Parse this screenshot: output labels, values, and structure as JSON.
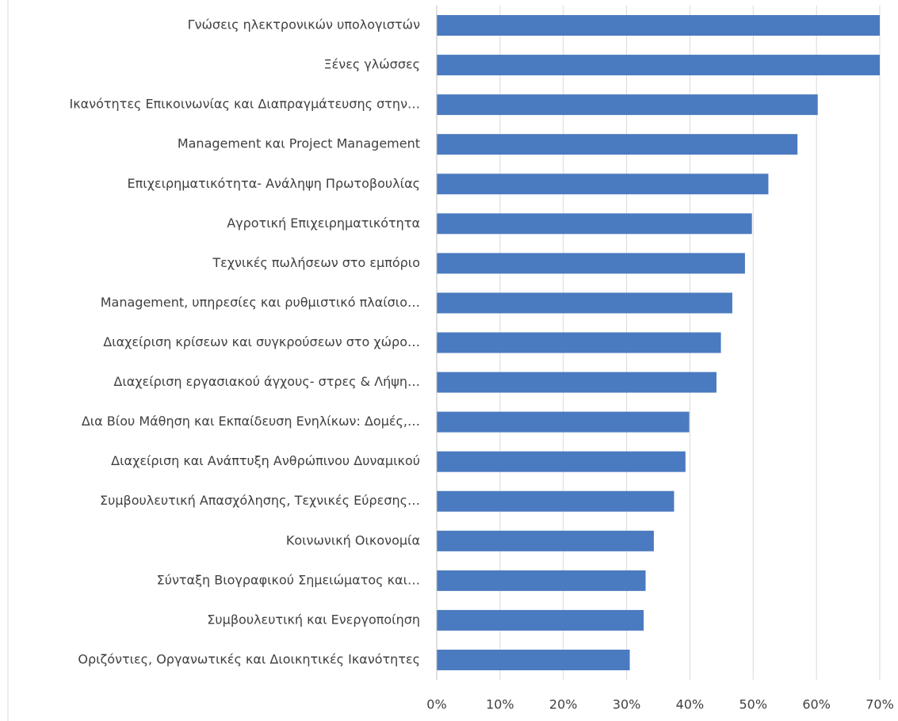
{
  "chart_data": {
    "type": "bar",
    "orientation": "horizontal",
    "categories": [
      "Γνώσεις ηλεκτρονικών υπολογιστών",
      "Ξένες γλώσσες",
      "Ικανότητες Επικοινωνίας και Διαπραγμάτευσης στην…",
      "Management και Project Management",
      "Επιχειρηματικότητα- Ανάληψη Πρωτοβουλίας",
      "Αγροτική Επιχειρηματικότητα",
      "Τεχνικές πωλήσεων στο εμπόριο",
      "Management, υπηρεσίες και ρυθμιστικό πλαίσιο…",
      "Διαχείριση κρίσεων και συγκρούσεων στο χώρο…",
      "Διαχείριση εργασιακού άγχους- στρες & Λήψη…",
      "Δια Βίου Μάθηση και Εκπαίδευση Ενηλίκων: Δομές,…",
      "Διαχείριση και Ανάπτυξη Ανθρώπινου Δυναμικού",
      "Συμβουλευτική Απασχόλησης, Τεχνικές Εύρεσης…",
      "Κοινωνική Οικονομία",
      "Σύνταξη Βιογραφικού Σημειώματος και…",
      "Συμβουλευτική και Ενεργοποίηση",
      "Οριζόντιες, Οργανωτικές και Διοικητικές Ικανότητες"
    ],
    "values": [
      70,
      70,
      60.2,
      57,
      52.4,
      49.8,
      48.7,
      46.7,
      44.9,
      44.2,
      39.9,
      39.3,
      37.5,
      34.3,
      33,
      32.7,
      30.5
    ],
    "color": "#4a7ac0",
    "xlim": [
      0,
      70
    ],
    "xticks": [
      {
        "value": 0,
        "label": "0%"
      },
      {
        "value": 10,
        "label": "10%"
      },
      {
        "value": 20,
        "label": "20%"
      },
      {
        "value": 30,
        "label": "30%"
      },
      {
        "value": 40,
        "label": "40%"
      },
      {
        "value": 50,
        "label": "50%"
      },
      {
        "value": 60,
        "label": "60%"
      },
      {
        "value": 70,
        "label": "70%"
      }
    ],
    "grid": true
  }
}
